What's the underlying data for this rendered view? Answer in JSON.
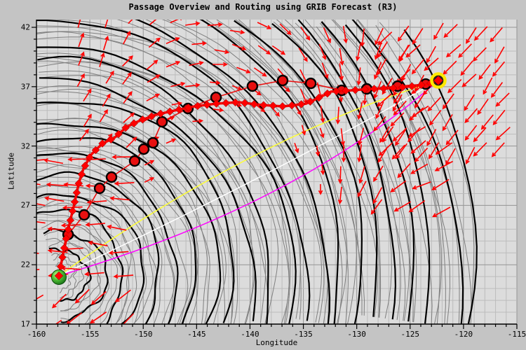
{
  "window": {
    "background": "#c4c4c4",
    "plot_background": "#dcdcdc"
  },
  "title": "Passage Overview and Routing using GRIB Forecast (R3)",
  "axes": {
    "x": {
      "label": "Longitude",
      "min": -160,
      "max": -115,
      "major_ticks": [
        -160,
        -155,
        -150,
        -145,
        -140,
        -135,
        -130,
        -125,
        -120,
        -115
      ],
      "minor_step": 1
    },
    "y": {
      "label": "Latitude",
      "min": 17,
      "max": 42.65,
      "major_ticks": [
        17,
        22,
        27,
        32,
        37,
        42
      ],
      "minor_step": 1
    }
  },
  "chart_data": {
    "type": "line",
    "title": "Passage Overview and Routing using GRIB Forecast (R3)",
    "xlabel": "Longitude",
    "ylabel": "Latitude",
    "xlim": [
      -160,
      -115
    ],
    "ylim": [
      17,
      42.65
    ],
    "grid": {
      "on": true,
      "minor_color": "#bcbcbc",
      "major_color": "#949494",
      "step_deg": 1,
      "major_step_deg": 5
    },
    "start": {
      "name": "departure",
      "lon": -157.9,
      "lat": 21.07,
      "marker": "green-sphere"
    },
    "destination": {
      "name": "arrival",
      "lon": -122.36,
      "lat": 37.52,
      "marker": "yellow-ring-circle"
    },
    "series": [
      {
        "name": "optimized-route",
        "color": "#ff0000",
        "marker": "diamond",
        "line_width": 3.5,
        "points": [
          [
            -157.9,
            21.07
          ],
          [
            -157.5,
            22.96
          ],
          [
            -157.18,
            24.37
          ],
          [
            -156.78,
            25.91
          ],
          [
            -156.39,
            27.38
          ],
          [
            -156.06,
            28.8
          ],
          [
            -155.6,
            30.09
          ],
          [
            -154.88,
            31.27
          ],
          [
            -153.83,
            32.21
          ],
          [
            -152.71,
            32.69
          ],
          [
            -151.53,
            33.63
          ],
          [
            -150.28,
            34.16
          ],
          [
            -148.83,
            34.63
          ],
          [
            -147.12,
            34.98
          ],
          [
            -145.22,
            35.34
          ],
          [
            -143.18,
            35.57
          ],
          [
            -141.08,
            35.69
          ],
          [
            -138.98,
            35.46
          ],
          [
            -136.88,
            35.34
          ],
          [
            -134.77,
            35.57
          ],
          [
            -133.33,
            36.16
          ],
          [
            -132.41,
            36.58
          ],
          [
            -130.57,
            36.69
          ],
          [
            -128.6,
            36.81
          ],
          [
            -126.63,
            36.87
          ],
          [
            -124.65,
            37.05
          ],
          [
            -123.34,
            37.22
          ],
          [
            -122.36,
            37.52
          ]
        ]
      },
      {
        "name": "daily-positions",
        "color": "#e81010",
        "marker": "circle-black-ring",
        "line_width": 1.6,
        "points": [
          [
            -157.04,
            24.55
          ],
          [
            -155.53,
            26.2
          ],
          [
            -154.09,
            28.44
          ],
          [
            -152.97,
            29.38
          ],
          [
            -150.8,
            30.74
          ],
          [
            -149.95,
            31.74
          ],
          [
            -149.09,
            32.27
          ],
          [
            -148.24,
            34.04
          ],
          [
            -145.81,
            35.16
          ],
          [
            -143.18,
            36.1
          ],
          [
            -139.77,
            37.05
          ],
          [
            -136.94,
            37.52
          ],
          [
            -134.31,
            37.28
          ],
          [
            -131.42,
            36.69
          ],
          [
            -129.06,
            36.81
          ],
          [
            -126.17,
            37.05
          ],
          [
            -123.54,
            37.22
          ],
          [
            -122.36,
            37.52
          ]
        ]
      },
      {
        "name": "rhumb-line",
        "color": "#ffff33",
        "line_width": 1.5,
        "points": [
          [
            -157.9,
            21.07
          ],
          [
            -122.36,
            37.52
          ]
        ],
        "curve_control": [
          -140.1,
          32.6
        ]
      },
      {
        "name": "reference-line-white",
        "color": "#ffffff",
        "line_width": 1.5,
        "points": [
          [
            -157.9,
            21.07
          ],
          [
            -122.36,
            37.52
          ]
        ],
        "curve_control": [
          -137.8,
          29.6
        ]
      },
      {
        "name": "great-circle-line",
        "color": "#ff00ff",
        "line_width": 1.5,
        "points": [
          [
            -157.9,
            21.07
          ],
          [
            -122.36,
            37.52
          ]
        ],
        "curve_control": [
          -135.8,
          26.9
        ]
      }
    ],
    "isochrones": {
      "description": "wavy isochrone fronts radiating from departure point",
      "gray_color": "#7f7f7f",
      "black_color": "#000000",
      "count": 88,
      "inner_radius_px": 20,
      "radius_step_px": 6.6,
      "black_every": 4,
      "theta_from_deg": -110,
      "theta_to_deg": 88
    },
    "wind_arrows": {
      "description": "GRIB wind vectors, clockwise fan around North Pacific High; trades near Hawaii",
      "color": "#ff0000",
      "fan": {
        "grid_step": 31,
        "x_min": 115,
        "y_min": 38,
        "y_max": 315,
        "center": [
          330,
          260
        ],
        "r_min": 100,
        "r_max": 325,
        "angle_base": -70,
        "angle_span": 210,
        "angle_x0": 140,
        "angle_xw": 480
      },
      "trades": {
        "x_min": 58,
        "x_max": 205,
        "y_min": 228,
        "y_max": 460,
        "grid_step": 32,
        "angle_west": 183,
        "angle_sw": 142,
        "y_split": 395
      },
      "dense_ne": {
        "x_min": 555,
        "x_max": 735,
        "y_min": 40,
        "y_max": 214,
        "grid_step": 24
      }
    }
  }
}
